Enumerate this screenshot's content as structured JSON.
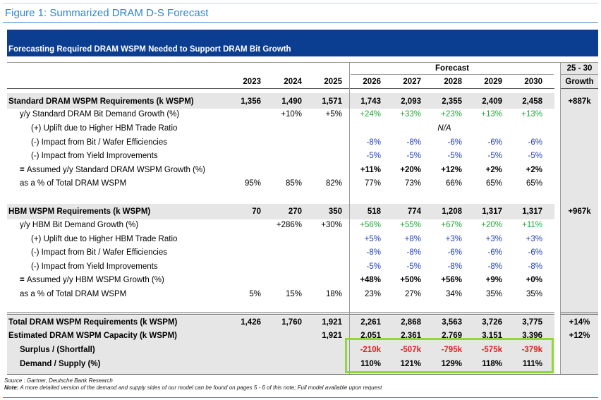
{
  "figure_title": "Figure 1: Summarized DRAM D-S Forecast",
  "banner_title": "Forecasting Required DRAM WSPM Needed to Support DRAM Bit Growth",
  "forecast_label": "Forecast",
  "growth_header_top": "25 - 30",
  "growth_header_bottom": "Growth",
  "years": [
    "2023",
    "2024",
    "2025",
    "2026",
    "2027",
    "2028",
    "2029",
    "2030"
  ],
  "rows": [
    {
      "label": "Standard DRAM WSPM Requirements (k WSPM)",
      "style": "header",
      "values": [
        "1,356",
        "1,490",
        "1,571",
        "1,743",
        "2,093",
        "2,355",
        "2,409",
        "2,458"
      ],
      "growth": "+887k"
    },
    {
      "label": "y/y Standard DRAM Bit Demand Growth (%)",
      "style": "sub",
      "values": [
        "",
        "+10%",
        "+5%",
        "+24%",
        "+33%",
        "+23%",
        "+13%",
        "+13%"
      ],
      "colors": [
        "",
        "",
        "",
        "g",
        "g",
        "g",
        "g",
        "g"
      ],
      "growth": ""
    },
    {
      "label": "(+) Uplift due to Higher HBM Trade Ratio",
      "style": "subsub",
      "values": [
        "",
        "",
        "",
        "",
        "",
        "N/A",
        "",
        ""
      ],
      "colors": [
        "",
        "",
        "",
        "",
        "",
        "na",
        "",
        ""
      ],
      "growth": ""
    },
    {
      "label": "(-) Impact from Bit / Wafer Efficiencies",
      "style": "subsub",
      "values": [
        "",
        "",
        "",
        "-8%",
        "-8%",
        "-6%",
        "-6%",
        "-6%"
      ],
      "colors": [
        "",
        "",
        "",
        "bl",
        "bl",
        "bl",
        "bl",
        "bl"
      ],
      "growth": ""
    },
    {
      "label": "(-) Impact from Yield Improvements",
      "style": "subsub",
      "values": [
        "",
        "",
        "",
        "-5%",
        "-5%",
        "-5%",
        "-5%",
        "-5%"
      ],
      "colors": [
        "",
        "",
        "",
        "bl",
        "bl",
        "bl",
        "bl",
        "bl"
      ],
      "growth": ""
    },
    {
      "label": "Assumed y/y Standard DRAM WSPM Growth (%)",
      "style": "assumed",
      "values": [
        "",
        "",
        "",
        "+11%",
        "+20%",
        "+12%",
        "+2%",
        "+2%"
      ],
      "growth": ""
    },
    {
      "label": "as a % of Total DRAM WSPM",
      "style": "sub",
      "values": [
        "95%",
        "85%",
        "82%",
        "77%",
        "73%",
        "66%",
        "65%",
        "65%"
      ],
      "growth": ""
    },
    {
      "label": "HBM WSPM Requirements (k WSPM)",
      "style": "header",
      "values": [
        "70",
        "270",
        "350",
        "518",
        "774",
        "1,208",
        "1,317",
        "1,317"
      ],
      "growth": "+967k"
    },
    {
      "label": "y/y HBM Bit Demand Growth (%)",
      "style": "sub",
      "values": [
        "",
        "+286%",
        "+30%",
        "+56%",
        "+55%",
        "+67%",
        "+20%",
        "+11%"
      ],
      "colors": [
        "",
        "",
        "",
        "g",
        "g",
        "g",
        "g",
        "g"
      ],
      "growth": ""
    },
    {
      "label": "(+) Uplift due to Higher HBM Trade Ratio",
      "style": "subsub",
      "values": [
        "",
        "",
        "",
        "+5%",
        "+8%",
        "+3%",
        "+3%",
        "+3%"
      ],
      "colors": [
        "",
        "",
        "",
        "bl",
        "bl",
        "bl",
        "bl",
        "bl"
      ],
      "growth": ""
    },
    {
      "label": "(-) Impact from Bit / Wafer Efficiencies",
      "style": "subsub",
      "values": [
        "",
        "",
        "",
        "-8%",
        "-8%",
        "-6%",
        "-6%",
        "-6%"
      ],
      "colors": [
        "",
        "",
        "",
        "bl",
        "bl",
        "bl",
        "bl",
        "bl"
      ],
      "growth": ""
    },
    {
      "label": "(-) Impact from Yield Improvements",
      "style": "subsub",
      "values": [
        "",
        "",
        "",
        "-5%",
        "-5%",
        "-8%",
        "-8%",
        "-8%"
      ],
      "colors": [
        "",
        "",
        "",
        "bl",
        "bl",
        "bl",
        "bl",
        "bl"
      ],
      "growth": ""
    },
    {
      "label": "Assumed y/y HBM WSPM Growth (%)",
      "style": "assumed",
      "values": [
        "",
        "",
        "",
        "+48%",
        "+50%",
        "+56%",
        "+9%",
        "+0%"
      ],
      "growth": ""
    },
    {
      "label": "as a % of Total DRAM WSPM",
      "style": "sub",
      "values": [
        "5%",
        "15%",
        "18%",
        "23%",
        "27%",
        "34%",
        "35%",
        "35%"
      ],
      "growth": ""
    },
    {
      "label": "Total DRAM WSPM Requirements (k WSPM)",
      "style": "header",
      "values": [
        "1,426",
        "1,760",
        "1,921",
        "2,261",
        "2,868",
        "3,563",
        "3,726",
        "3,775"
      ],
      "growth": "+14%"
    },
    {
      "label": "Estimated DRAM WSPM Capacity (k WSPM)",
      "style": "header",
      "values": [
        "",
        "",
        "1,921",
        "2,051",
        "2,361",
        "2,769",
        "3,151",
        "3,396"
      ],
      "growth": "+12%"
    },
    {
      "label": "Surplus / (Shortfall)",
      "style": "header-indent",
      "values": [
        "",
        "",
        "",
        "-210k",
        "-507k",
        "-795k",
        "-575k",
        "-379k"
      ],
      "colors": [
        "",
        "",
        "",
        "red",
        "red",
        "red",
        "red",
        "red"
      ],
      "growth": ""
    },
    {
      "label": "Demand / Supply (%)",
      "style": "header-indent",
      "values": [
        "",
        "",
        "",
        "110%",
        "121%",
        "129%",
        "118%",
        "111%"
      ],
      "growth": ""
    }
  ],
  "source_note": "Source : Gartner, Deutsche Bank Research",
  "note_prefix": "Note:",
  "note_text": " A more detailed version of the demand and supply sides of our model can be found on pages 5 - 6 of this note; Full model available upon request",
  "colors": {
    "banner": "#0b3d91",
    "title": "#2e86c9",
    "green": "#1fa83a",
    "blue": "#1f3fb8",
    "red": "#e02020",
    "highlight": "#8fd83a"
  }
}
